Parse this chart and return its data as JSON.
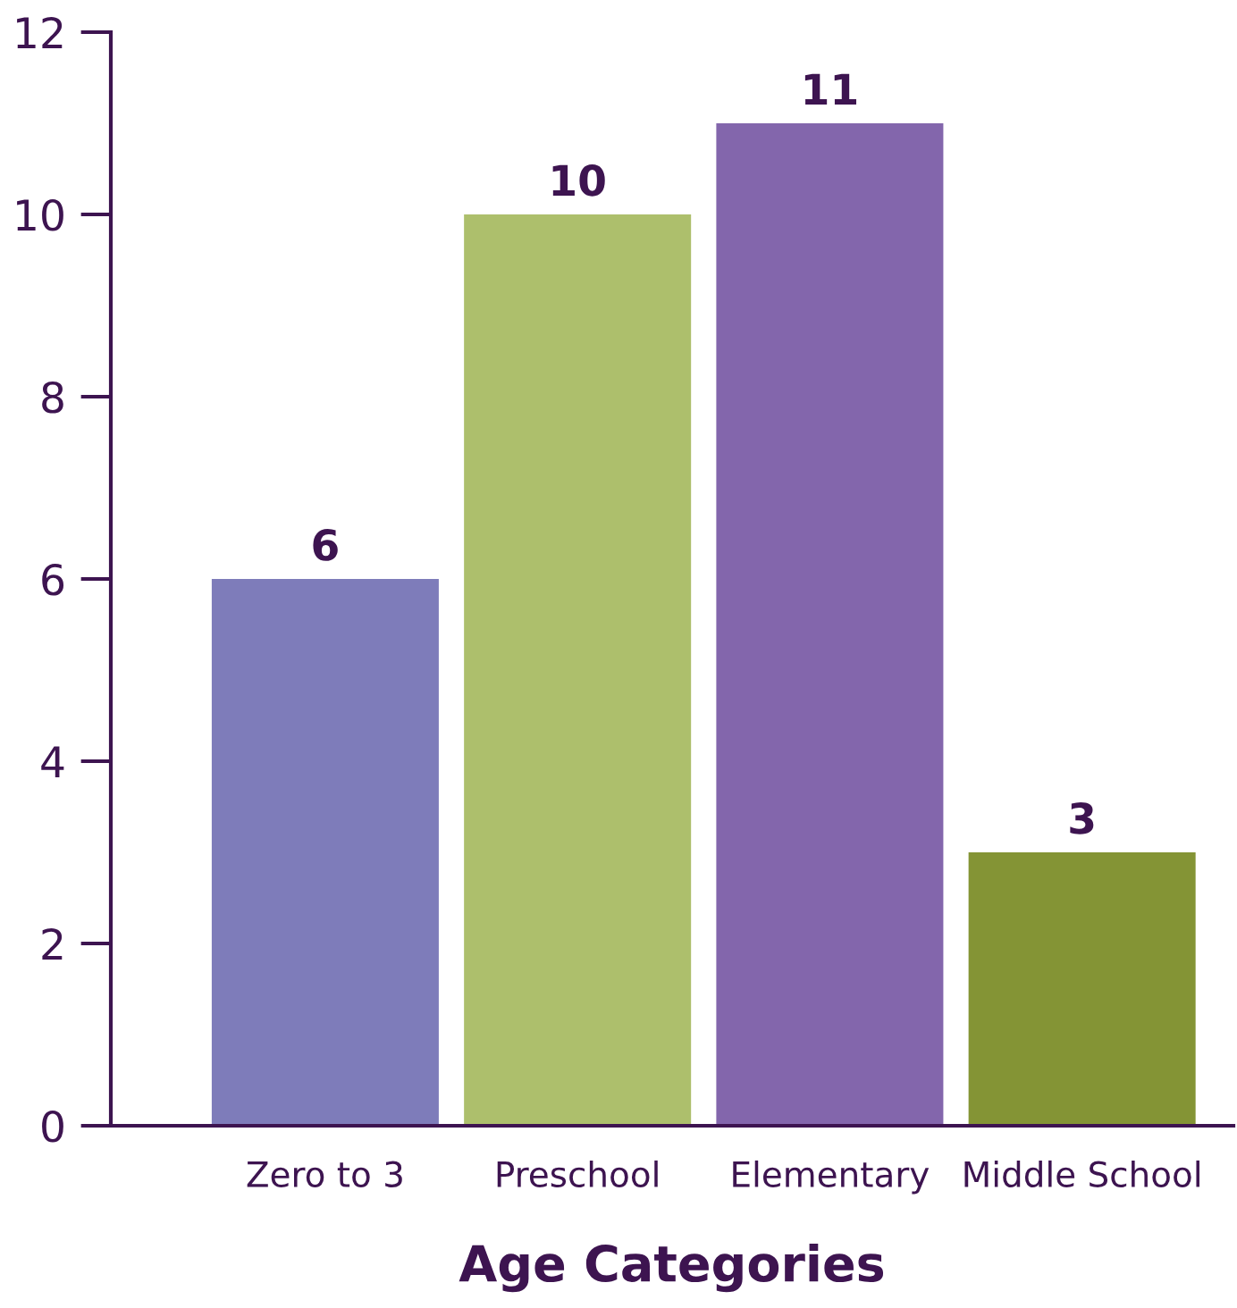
{
  "chart_data": {
    "type": "bar",
    "xlabel": "Age Categories",
    "categories": [
      "Zero to 3",
      "Preschool",
      "Elementary",
      "Middle School"
    ],
    "values": [
      6,
      10,
      11,
      3
    ],
    "colors": [
      "#7e7cba",
      "#adbf6c",
      "#8366ac",
      "#849435"
    ],
    "ylim": [
      0,
      12
    ],
    "yticks": [
      0,
      2,
      4,
      6,
      8,
      10,
      12
    ],
    "data_labels": true,
    "grid": false,
    "legend": false
  }
}
